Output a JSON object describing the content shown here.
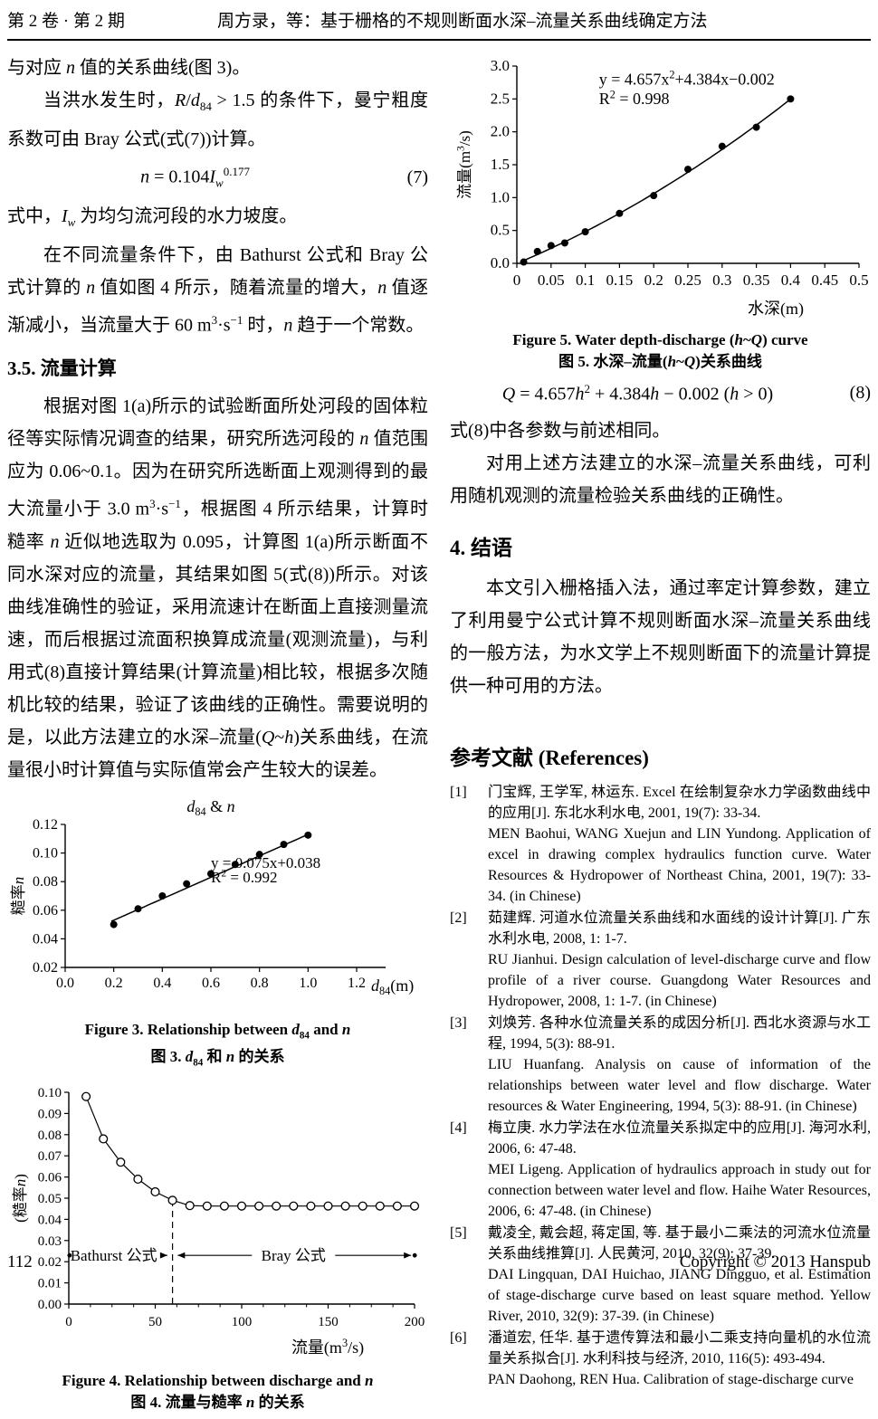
{
  "header": {
    "issue": "第 2 卷 · 第 2 期",
    "running_title": "周方录，等：基于栅格的不规则断面水深–流量关系曲线确定方法"
  },
  "left": {
    "para1": [
      {
        "t": "与对应 "
      },
      {
        "t": "n",
        "i": 1
      },
      {
        "t": " 值的关系曲线(图 3)。"
      }
    ],
    "para2": [
      {
        "t": "当洪水发生时，"
      },
      {
        "t": "R",
        "i": 1
      },
      {
        "t": "/"
      },
      {
        "t": "d",
        "i": 1
      },
      {
        "t": "84",
        "sub": 1
      },
      {
        "t": " > 1.5 的条件下，曼宁粗度系数可由 Bray 公式(式(7))计算。"
      }
    ],
    "eq7": {
      "body": [
        {
          "t": "n",
          "i": 1
        },
        {
          "t": " = 0.104"
        },
        {
          "t": "I",
          "i": 1
        },
        {
          "t": "w",
          "i": 1,
          "sub": 1
        },
        {
          "t": "0.177",
          "sup": 1
        }
      ],
      "num": "(7)"
    },
    "para3": [
      {
        "t": "式中，"
      },
      {
        "t": "I",
        "i": 1
      },
      {
        "t": "w",
        "i": 1,
        "sub": 1
      },
      {
        "t": " 为均匀流河段的水力坡度。"
      }
    ],
    "para4": [
      {
        "t": "在不同流量条件下，由 Bathurst 公式和 Bray 公式计算的 "
      },
      {
        "t": "n",
        "i": 1
      },
      {
        "t": " 值如图 4 所示，随着流量的增大，"
      },
      {
        "t": "n",
        "i": 1
      },
      {
        "t": " 值逐渐减小，当流量大于 60 m"
      },
      {
        "t": "3",
        "sup": 1
      },
      {
        "t": "·s"
      },
      {
        "t": "−1",
        "sup": 1
      },
      {
        "t": " 时，"
      },
      {
        "t": "n",
        "i": 1
      },
      {
        "t": " 趋于一个常数。"
      }
    ],
    "sec35": "3.5. 流量计算",
    "para5": [
      {
        "t": "根据对图 1(a)所示的试验断面所处河段的固体粒径等实际情况调查的结果，研究所选河段的 "
      },
      {
        "t": "n",
        "i": 1
      },
      {
        "t": " 值范围应为 0.06~0.1。因为在研究所选断面上观测得到的最大流量小于 3.0 m"
      },
      {
        "t": "3",
        "sup": 1
      },
      {
        "t": "·s"
      },
      {
        "t": "−1",
        "sup": 1
      },
      {
        "t": "，根据图 4 所示结果，计算时糙率 "
      },
      {
        "t": "n",
        "i": 1
      },
      {
        "t": " 近似地选取为 0.095，计算图 1(a)所示断面不同水深对应的流量，其结果如图 5(式(8))所示。对该曲线准确性的验证，采用流速计在断面上直接测量流速，而后根据过流面积换算成流量(观测流量)，与利用式(8)直接计算结果(计算流量)相比较，根据多次随机比较的结果，验证了该曲线的正确性。需要说明的是，以此方法建立的水深–流量("
      },
      {
        "t": "Q",
        "i": 1
      },
      {
        "t": "~"
      },
      {
        "t": "h",
        "i": 1
      },
      {
        "t": ")关系曲线，在流量很小时计算值与实际值常会产生较大的误差。"
      }
    ],
    "fig3_caption_en": [
      {
        "t": "Figure 3. Relationship between "
      },
      {
        "t": "d",
        "i": 1
      },
      {
        "t": "84",
        "sub": 1
      },
      {
        "t": " and "
      },
      {
        "t": "n",
        "i": 1
      }
    ],
    "fig3_caption_zh": [
      {
        "t": "图 3. "
      },
      {
        "t": "d",
        "i": 1
      },
      {
        "t": "84",
        "sub": 1
      },
      {
        "t": " 和 "
      },
      {
        "t": "n",
        "i": 1
      },
      {
        "t": " 的关系"
      }
    ],
    "fig4_caption_en": [
      {
        "t": "Figure 4. Relationship between discharge and "
      },
      {
        "t": "n",
        "i": 1
      }
    ],
    "fig4_caption_zh": [
      {
        "t": "图 4. 流量与糙率 "
      },
      {
        "t": "n",
        "i": 1
      },
      {
        "t": " 的关系"
      }
    ]
  },
  "right": {
    "fig5_caption_en": [
      {
        "t": "Figure 5. Water depth-discharge ("
      },
      {
        "t": "h",
        "i": 1
      },
      {
        "t": "~"
      },
      {
        "t": "Q",
        "i": 1
      },
      {
        "t": ") curve"
      }
    ],
    "fig5_caption_zh": [
      {
        "t": "图 5. 水深–流量("
      },
      {
        "t": "h",
        "i": 1
      },
      {
        "t": "~"
      },
      {
        "t": "Q",
        "i": 1
      },
      {
        "t": ")关系曲线"
      }
    ],
    "eq8": {
      "body": [
        {
          "t": "Q",
          "i": 1
        },
        {
          "t": " = 4.657"
        },
        {
          "t": "h",
          "i": 1
        },
        {
          "t": "2",
          "sup": 1
        },
        {
          "t": " + 4.384"
        },
        {
          "t": "h",
          "i": 1
        },
        {
          "t": " − 0.002 ("
        },
        {
          "t": "h",
          "i": 1
        },
        {
          "t": " > 0)"
        }
      ],
      "num": "(8)"
    },
    "para1": "式(8)中各参数与前述相同。",
    "para2": "对用上述方法建立的水深–流量关系曲线，可利用随机观测的流量检验关系曲线的正确性。",
    "sec4": "4. 结语",
    "concl": "本文引入栅格插入法，通过率定计算参数，建立了利用曼宁公式计算不规则断面水深–流量关系曲线的一般方法，为水文学上不规则断面下的流量计算提供一种可用的方法。",
    "refs_heading": "参考文献  (References)",
    "references": [
      {
        "no": "[1]",
        "zh": "门宝辉, 王学军, 林运东. Excel 在绘制复杂水力学函数曲线中的应用[J]. 东北水利水电, 2001, 19(7): 33-34.",
        "en": "MEN Baohui, WANG Xuejun and LIN Yundong. Application of excel in drawing complex hydraulics function curve. Water Resources & Hydropower of Northeast China, 2001, 19(7): 33-34. (in Chinese)"
      },
      {
        "no": "[2]",
        "zh": "茹建辉. 河道水位流量关系曲线和水面线的设计计算[J]. 广东水利水电, 2008, 1: 1-7.",
        "en": "RU Jianhui. Design calculation of level-discharge curve and flow profile of a river course. Guangdong Water Resources and Hydropower, 2008, 1: 1-7. (in Chinese)"
      },
      {
        "no": "[3]",
        "zh": "刘焕芳. 各种水位流量关系的成因分析[J]. 西北水资源与水工程, 1994, 5(3): 88-91.",
        "en": "LIU Huanfang. Analysis on cause of information of the relationships between water level and flow discharge. Water resources & Water Engineering, 1994, 5(3): 88-91. (in Chinese)"
      },
      {
        "no": "[4]",
        "zh": "梅立庚. 水力学法在水位流量关系拟定中的应用[J]. 海河水利, 2006, 6: 47-48.",
        "en": "MEI Ligeng. Application of hydraulics approach in study out for connection between water level and flow. Haihe Water Resources, 2006, 6: 47-48. (in Chinese)"
      },
      {
        "no": "[5]",
        "zh": "戴凌全, 戴会超, 蒋定国, 等. 基于最小二乘法的河流水位流量关系曲线推算[J]. 人民黄河, 2010, 32(9): 37-39.",
        "en": "DAI Lingquan, DAI Huichao, JIANG Dingguo, et al. Estimation of stage-discharge curve based on least square method. Yellow River, 2010, 32(9): 37-39. (in Chinese)"
      },
      {
        "no": "[6]",
        "zh": "潘道宏, 任华. 基于遗传算法和最小二乘支持向量机的水位流量关系拟合[J]. 水利科技与经济, 2010, 116(5): 493-494.",
        "en": "PAN Daohong, REN Hua. Calibration of stage-discharge curve"
      }
    ]
  },
  "footer": {
    "page": "112",
    "copyright": "Copyright © 2013 Hanspub"
  },
  "chart_data": [
    {
      "id": "fig5",
      "type": "scatter",
      "title": "",
      "xlabel": [
        {
          "t": "水深(m)"
        }
      ],
      "ylabel": [
        {
          "t": "流量(m"
        },
        {
          "t": "3",
          "sup": 1
        },
        {
          "t": "/s)"
        }
      ],
      "equation": [
        {
          "t": "y = 4.657x"
        },
        {
          "t": "2",
          "sup": 1
        },
        {
          "t": "+4.384x−0.002"
        }
      ],
      "r2": [
        {
          "t": "R"
        },
        {
          "t": "2",
          "sup": 1
        },
        {
          "t": " = 0.998"
        }
      ],
      "xlim": [
        0,
        0.5
      ],
      "ylim": [
        0,
        3
      ],
      "xticks": {
        "values": [
          0,
          0.05,
          0.1,
          0.15,
          0.2,
          0.25,
          0.3,
          0.35,
          0.4,
          0.45,
          0.5
        ],
        "labels": [
          "0",
          "0.05",
          "0.1",
          "0.15",
          "0.2",
          "0.25",
          "0.3",
          "0.35",
          "0.4",
          "0.45",
          "0.5"
        ]
      },
      "yticks": {
        "values": [
          0,
          0.5,
          1,
          1.5,
          2,
          2.5,
          3
        ],
        "labels": [
          "0.0",
          "0.5",
          "1.0",
          "1.5",
          "2.0",
          "2.5",
          "3.0"
        ]
      },
      "points": [
        [
          0.01,
          0.02
        ],
        [
          0.03,
          0.18
        ],
        [
          0.05,
          0.27
        ],
        [
          0.07,
          0.31
        ],
        [
          0.1,
          0.48
        ],
        [
          0.15,
          0.76
        ],
        [
          0.2,
          1.03
        ],
        [
          0.25,
          1.43
        ],
        [
          0.3,
          1.78
        ],
        [
          0.35,
          2.07
        ],
        [
          0.4,
          2.5
        ]
      ],
      "marker": "filled",
      "fit": {
        "coeffs": [
          4.657,
          4.384,
          -0.002
        ],
        "range": [
          0.005,
          0.4
        ]
      },
      "eq_pos": [
        0.12,
        2.72
      ],
      "r2_pos": [
        0.12,
        2.42
      ]
    },
    {
      "id": "fig3",
      "type": "scatter",
      "title": [
        {
          "t": "d",
          "i": 1
        },
        {
          "t": "84",
          "sub": 1
        },
        {
          "t": " & "
        },
        {
          "t": "n",
          "i": 1
        }
      ],
      "xlabel": [
        {
          "t": "d",
          "i": 1
        },
        {
          "t": "84",
          "sub": 1
        },
        {
          "t": "(m)"
        }
      ],
      "ylabel": [
        {
          "t": "糙率"
        },
        {
          "t": "n",
          "i": 1
        }
      ],
      "equation": [
        {
          "t": "y = 0.075x+0.038"
        }
      ],
      "r2": [
        {
          "t": "R"
        },
        {
          "t": "2",
          "sup": 1
        },
        {
          "t": " = 0.992"
        }
      ],
      "xlim": [
        0,
        1.2
      ],
      "ylim": [
        0.02,
        0.12
      ],
      "xticks": {
        "values": [
          0,
          0.2,
          0.4,
          0.6,
          0.8,
          1,
          1.2
        ],
        "labels": [
          "0.0",
          "0.2",
          "0.4",
          "0.6",
          "0.8",
          "1.0",
          "1.2"
        ]
      },
      "yticks": {
        "values": [
          0.02,
          0.04,
          0.06,
          0.08,
          0.1,
          0.12
        ],
        "labels": [
          "0.02",
          "0.04",
          "0.06",
          "0.08",
          "0.10",
          "0.12"
        ]
      },
      "points": [
        [
          0.2,
          0.05
        ],
        [
          0.3,
          0.061
        ],
        [
          0.4,
          0.07
        ],
        [
          0.5,
          0.0785
        ],
        [
          0.6,
          0.0855
        ],
        [
          0.7,
          0.092
        ],
        [
          0.8,
          0.099
        ],
        [
          0.9,
          0.106
        ],
        [
          1,
          0.1125
        ]
      ],
      "marker": "filled",
      "fit": {
        "coeffs": [
          0.075,
          0.038
        ],
        "range": [
          0.19,
          1.01
        ]
      },
      "eq_pos": [
        0.6,
        0.0895
      ],
      "r2_pos": [
        0.6,
        0.0795
      ]
    },
    {
      "id": "fig4",
      "type": "scatter-line",
      "title": "",
      "xlabel": [
        {
          "t": "流量(m"
        },
        {
          "t": "3",
          "sup": 1
        },
        {
          "t": "/s)"
        }
      ],
      "ylabel": [
        {
          "t": "(糙率"
        },
        {
          "t": "n",
          "i": 1
        },
        {
          "t": ")"
        }
      ],
      "xlim": [
        0,
        200
      ],
      "ylim": [
        0,
        0.1
      ],
      "xticks": {
        "values": [
          0,
          50,
          100,
          150,
          200
        ],
        "labels": [
          "0",
          "50",
          "100",
          "150",
          "200"
        ],
        "minor_step": 12.5
      },
      "yticks": {
        "values": [
          0,
          0.01,
          0.02,
          0.03,
          0.04,
          0.05,
          0.06,
          0.07,
          0.08,
          0.09,
          0.1
        ],
        "labels": [
          "0.00",
          "0.01",
          "0.02",
          "0.03",
          "0.04",
          "0.05",
          "0.06",
          "0.07",
          "0.08",
          "0.09",
          "0.10"
        ]
      },
      "points": [
        [
          10,
          0.098
        ],
        [
          20,
          0.078
        ],
        [
          30,
          0.067
        ],
        [
          40,
          0.059
        ],
        [
          50,
          0.053
        ],
        [
          60,
          0.049
        ],
        [
          70,
          0.0465
        ],
        [
          80,
          0.0463
        ],
        [
          90,
          0.0463
        ],
        [
          100,
          0.0463
        ],
        [
          110,
          0.0463
        ],
        [
          120,
          0.0463
        ],
        [
          130,
          0.0463
        ],
        [
          140,
          0.0463
        ],
        [
          150,
          0.0463
        ],
        [
          160,
          0.0463
        ],
        [
          170,
          0.0463
        ],
        [
          180,
          0.0463
        ],
        [
          190,
          0.0463
        ],
        [
          200,
          0.0463
        ]
      ],
      "marker": "open",
      "connect": true,
      "vline": {
        "x": 60,
        "y0": 0,
        "y1": 0.049
      },
      "annotations": [
        {
          "x1": 2,
          "x2": 57,
          "y": 0.023,
          "heads": "end",
          "label": [
            {
              "t": "Bathurst 公式"
            }
          ],
          "label_x": 26,
          "gap": 57,
          "dot": "start"
        },
        {
          "x1": 63,
          "x2": 198,
          "y": 0.023,
          "heads": "both",
          "label": [
            {
              "t": "Bray 公式"
            }
          ],
          "label_x": 130,
          "gap": 46,
          "dot": "end"
        }
      ]
    }
  ]
}
